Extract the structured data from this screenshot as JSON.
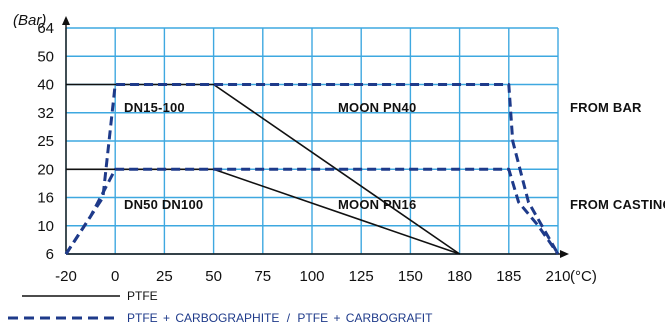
{
  "chart_data": {
    "type": "line",
    "y_unit": "(Bar)",
    "x_unit": "(°C)",
    "x_ticks": [
      "-20",
      "0",
      "25",
      "50",
      "75",
      "100",
      "125",
      "150",
      "180",
      "185",
      "210"
    ],
    "y_ticks": [
      "6",
      "10",
      "16",
      "20",
      "25",
      "32",
      "40",
      "50",
      "64"
    ],
    "grid": true,
    "annotations": {
      "dn15_100": "DN15-100",
      "moon_pn40": "MOON PN40",
      "dn50_dn100": "DN50  DN100",
      "moon_pn16": "MOON PN16",
      "from_bar": "FROM BAR",
      "from_casting": "FROM CASTING"
    },
    "series": [
      {
        "name": "PTFE",
        "style": "solid",
        "color": "#111111",
        "segments": [
          [
            [
              -20,
              40
            ],
            [
              50,
              40
            ],
            [
              180,
              6
            ]
          ],
          [
            [
              -20,
              20
            ],
            [
              50,
              20
            ],
            [
              180,
              6
            ]
          ]
        ]
      },
      {
        "name": "PTFE",
        "style": "dashed",
        "color": "#1e3a8a",
        "segments": [
          [
            [
              -20,
              6
            ],
            [
              -5,
              16
            ],
            [
              0,
              40
            ],
            [
              185,
              40
            ],
            [
              187,
              25
            ],
            [
              195,
              15
            ],
            [
              210,
              6
            ]
          ],
          [
            [
              -20,
              6
            ],
            [
              -10,
              12
            ],
            [
              0,
              20
            ],
            [
              185,
              20
            ],
            [
              190,
              15
            ],
            [
              200,
              10
            ],
            [
              210,
              6
            ]
          ]
        ]
      }
    ],
    "legend": {
      "ptfe_label": "PTFE",
      "carbo_label_1": "PTFE",
      "carbo_plus_1": "+",
      "carbo_label_2": "CARBOGRAPHITE",
      "carbo_sep": "/",
      "carbo_label_3": "PTFE",
      "carbo_plus_2": "+",
      "carbo_label_4": "CARBOGRAFIT"
    }
  }
}
